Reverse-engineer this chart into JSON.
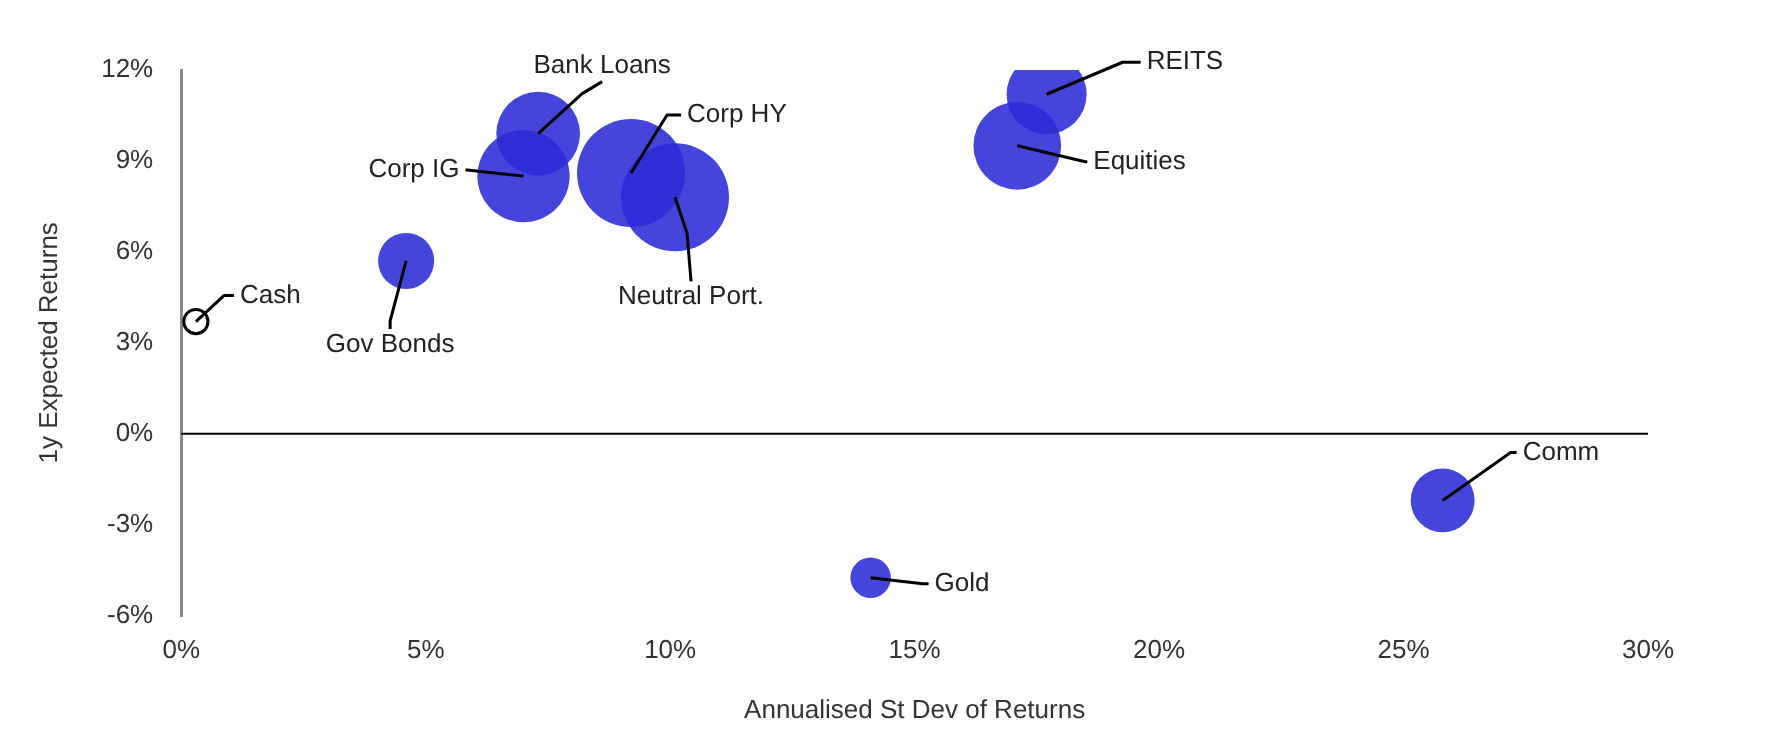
{
  "chart_data": {
    "type": "bubble",
    "xlabel": "Annualised St Dev of Returns",
    "ylabel": "1y Expected Returns",
    "x": [
      0.3,
      4.6,
      7.0,
      7.3,
      9.2,
      10.1,
      17.1,
      17.7,
      25.8,
      14.1
    ],
    "values": [
      3.7,
      5.7,
      8.5,
      9.9,
      8.6,
      7.8,
      9.5,
      11.2,
      -2.2,
      -4.75
    ],
    "sizes": [
      0.05,
      0.27,
      0.73,
      0.6,
      1,
      1,
      0.66,
      0.55,
      0.35,
      0.14
    ],
    "colors": [
      "#ffffff",
      "#2b2bd6",
      "#2b2bd6",
      "#2b2bd6",
      "#2b2bd6",
      "#2b2bd6",
      "#2b2bd6",
      "#2b2bd6",
      "#2b2bd6",
      "#2b2bd6"
    ],
    "annotations": [
      {
        "text": "Cash",
        "x": 0.3,
        "y": 3.7
      },
      {
        "text": "Gov Bonds",
        "x": 4.6,
        "y": 5.7
      },
      {
        "text": "Corp IG",
        "x": 7.0,
        "y": 8.5
      },
      {
        "text": "Bank Loans",
        "x": 7.3,
        "y": 9.9
      },
      {
        "text": "Corp HY",
        "x": 9.2,
        "y": 8.6
      },
      {
        "text": "Neutral Port.",
        "x": 10.1,
        "y": 7.8
      },
      {
        "text": "Equities",
        "x": 17.1,
        "y": 9.5
      },
      {
        "text": "REITS",
        "x": 17.7,
        "y": 11.2
      },
      {
        "text": "Comm",
        "x": 25.8,
        "y": -2.2
      },
      {
        "text": "Gold",
        "x": 14.1,
        "y": -4.75
      }
    ],
    "xlim": [
      0,
      30
    ],
    "xticks": [
      {
        "value": 0,
        "label": "0%"
      },
      {
        "value": 5,
        "label": "5%"
      },
      {
        "value": 10,
        "label": "10%"
      },
      {
        "value": 15,
        "label": "15%"
      },
      {
        "value": 20,
        "label": "20%"
      },
      {
        "value": 25,
        "label": "25%"
      },
      {
        "value": 30,
        "label": "30%"
      }
    ],
    "ylim": [
      -6,
      12
    ],
    "yticks": [
      {
        "value": -6,
        "label": "-6%"
      },
      {
        "value": -3,
        "label": "-3%"
      },
      {
        "value": 0,
        "label": "0%"
      },
      {
        "value": 3,
        "label": "3%"
      },
      {
        "value": 6,
        "label": "6%"
      },
      {
        "value": 9,
        "label": "9%"
      },
      {
        "value": 12,
        "label": "12%"
      }
    ],
    "ref_lines": [
      {
        "axis": "y",
        "value": 0,
        "color": "#000000"
      }
    ],
    "grid": false,
    "legend": false
  }
}
